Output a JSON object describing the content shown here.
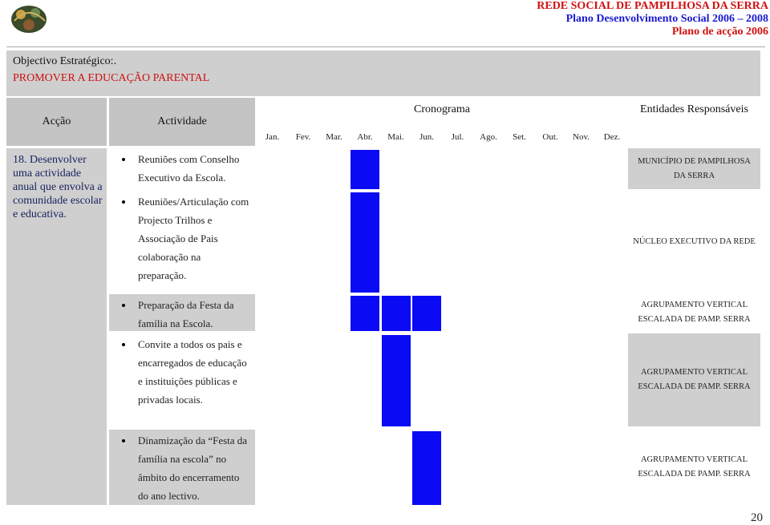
{
  "header": {
    "org": "REDE SOCIAL DE PAMPILHOSA DA SERRA",
    "plan": "Plano Desenvolvimento Social 2006 – 2008",
    "action_plan": "Plano de acção 2006"
  },
  "objective": {
    "label": "Objectivo Estratégico:.",
    "text": "PROMOVER A EDUCAÇÃO PARENTAL"
  },
  "table": {
    "headers": [
      "Acção",
      "Actividade",
      "Cronograma",
      "Entidades Responsáveis"
    ],
    "months": [
      "Jan.",
      "Fev.",
      "Mar.",
      "Abr.",
      "Mai.",
      "Jun.",
      "Jul.",
      "Ago.",
      "Set.",
      "Out.",
      "Nov.",
      "Dez."
    ],
    "action": "18. Desenvolver uma actividade anual que envolva a comunidade escolar e educativa.",
    "rows": [
      {
        "activities": [
          "Reuniões com Conselho Executivo da Escola."
        ],
        "months": [
          3
        ],
        "entities": [
          "MUNICÍPIO DE PAMPILHOSA DA SERRA"
        ]
      },
      {
        "activities": [
          "Reuniões/Articulação com Projecto Trilhos e Associação de Pais colaboração na preparação."
        ],
        "months": [
          3
        ],
        "entities": [
          "NÚCLEO EXECUTIVO DA REDE"
        ]
      },
      {
        "activities": [
          "Preparação da Festa da família na Escola."
        ],
        "months": [
          3,
          4,
          5
        ],
        "entities": [
          "AGRUPAMENTO VERTICAL ESCALADA DE PAMP. SERRA"
        ]
      },
      {
        "activities": [
          "Convite a todos os pais e encarregados de educação e  instituições públicas e privadas locais."
        ],
        "months": [
          4
        ],
        "entities": [
          "AGRUPAMENTO VERTICAL ESCALADA DE PAMP. SERRA"
        ]
      },
      {
        "activities": [
          "Dinamização da “Festa da família na escola” no âmbito do encerramento do ano lectivo."
        ],
        "months": [
          5
        ],
        "entities": [
          "AGRUPAMENTO VERTICAL ESCALADA DE PAMP. SERRA"
        ]
      }
    ]
  },
  "page_number": "20"
}
